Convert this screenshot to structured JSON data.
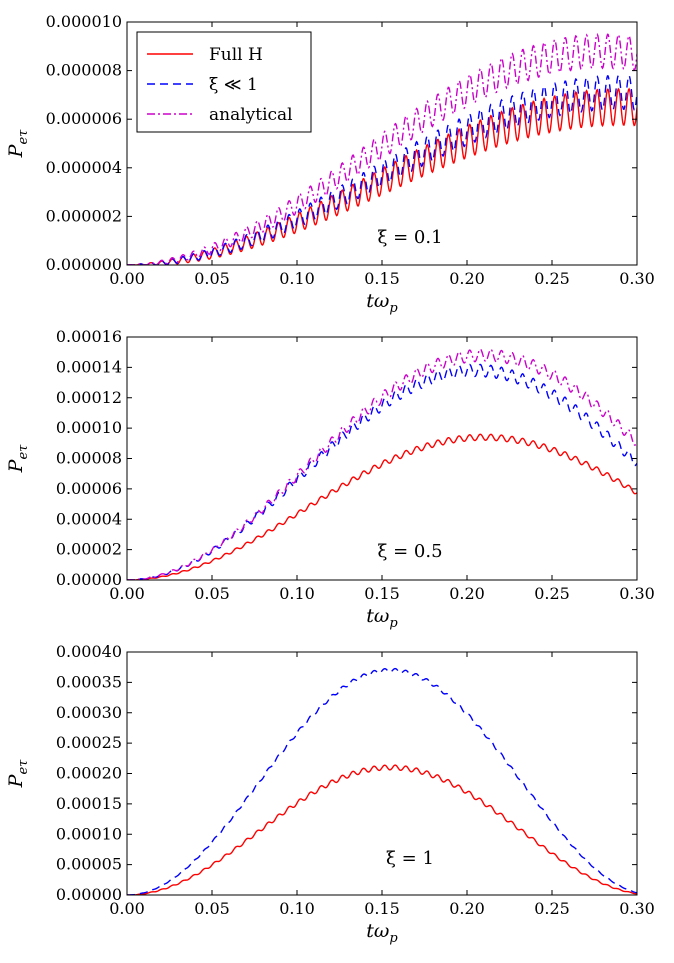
{
  "chart_data": [
    {
      "type": "line",
      "xlabel": "tω_p",
      "ylabel": "P_eτ",
      "xlim": [
        0,
        0.3
      ],
      "ylim": [
        0,
        1e-05
      ],
      "xticks": [
        "0.00",
        "0.05",
        "0.10",
        "0.15",
        "0.20",
        "0.25",
        "0.30"
      ],
      "yticks": [
        "0.000000",
        "0.000002",
        "0.000004",
        "0.000006",
        "0.000008",
        "0.000010"
      ],
      "annotation": "ξ = 0.1",
      "legend": {
        "placement": "top-left",
        "entries": [
          "Full H",
          "ξ ≪ 1",
          "analytical"
        ]
      },
      "series": [
        {
          "name": "Full H",
          "color": "#ff0000",
          "style": "solid",
          "peak": 6.5e-06,
          "peak_x": 0.29,
          "osc_freq": 160,
          "osc_amp": 7.5e-07
        },
        {
          "name": "ξ ≪ 1",
          "color": "#0000ff",
          "style": "dashed",
          "peak": 7.1e-06,
          "peak_x": 0.29,
          "osc_freq": 160,
          "osc_amp": 7e-07
        },
        {
          "name": "analytical",
          "color": "#cc00cc",
          "style": "dashdot",
          "peak": 8.8e-06,
          "peak_x": 0.28,
          "osc_freq": 160,
          "osc_amp": 7e-07
        }
      ]
    },
    {
      "type": "line",
      "xlabel": "tω_p",
      "ylabel": "P_eτ",
      "xlim": [
        0,
        0.3
      ],
      "ylim": [
        0,
        0.00016
      ],
      "xticks": [
        "0.00",
        "0.05",
        "0.10",
        "0.15",
        "0.20",
        "0.25",
        "0.30"
      ],
      "yticks": [
        "0.00000",
        "0.00002",
        "0.00004",
        "0.00006",
        "0.00008",
        "0.00010",
        "0.00012",
        "0.00014",
        "0.00016"
      ],
      "annotation": "ξ = 0.5",
      "series": [
        {
          "name": "Full H",
          "color": "#ff0000",
          "style": "solid",
          "peak": 9.4e-05,
          "peak_x": 0.21,
          "osc_freq": 160,
          "osc_amp": 2e-06
        },
        {
          "name": "ξ ≪ 1",
          "color": "#0000ff",
          "style": "dashed",
          "peak": 0.000138,
          "peak_x": 0.205,
          "osc_freq": 160,
          "osc_amp": 4e-06
        },
        {
          "name": "analytical",
          "color": "#cc00cc",
          "style": "dashdot",
          "peak": 0.000148,
          "peak_x": 0.21,
          "osc_freq": 160,
          "osc_amp": 4e-06
        }
      ]
    },
    {
      "type": "line",
      "xlabel": "tω_p",
      "ylabel": "P_eτ",
      "xlim": [
        0,
        0.3
      ],
      "ylim": [
        0,
        0.0004
      ],
      "xticks": [
        "0.00",
        "0.05",
        "0.10",
        "0.15",
        "0.20",
        "0.25",
        "0.30"
      ],
      "yticks": [
        "0.00000",
        "0.00005",
        "0.00010",
        "0.00015",
        "0.00020",
        "0.00025",
        "0.00030",
        "0.00035",
        "0.00040"
      ],
      "annotation": "ξ = 1",
      "series": [
        {
          "name": "Full H",
          "color": "#ff0000",
          "style": "solid",
          "peak": 0.00021,
          "peak_x": 0.155,
          "osc_freq": 160,
          "osc_amp": 4e-06
        },
        {
          "name": "ξ ≪ 1",
          "color": "#0000ff",
          "style": "dashed",
          "peak": 0.00037,
          "peak_x": 0.155,
          "osc_freq": 160,
          "osc_amp": 3e-06
        }
      ]
    }
  ]
}
